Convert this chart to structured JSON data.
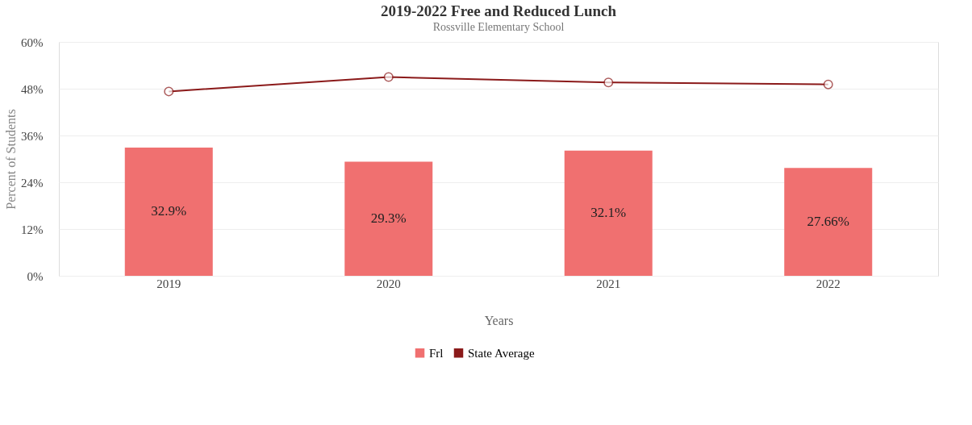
{
  "chart_data": {
    "type": "bar",
    "title": "2019-2022 Free and Reduced Lunch",
    "subtitle": "Rossville Elementary School",
    "xlabel": "Years",
    "ylabel": "Percent of Students",
    "categories": [
      "2019",
      "2020",
      "2021",
      "2022"
    ],
    "series": [
      {
        "name": "Frl",
        "color": "#f07070",
        "values": [
          32.9,
          29.3,
          32.1,
          27.66
        ],
        "value_labels": [
          "32.9%",
          "29.3%",
          "32.1%",
          "27.66%"
        ]
      },
      {
        "name": "State Average",
        "type": "line",
        "color": "#8b1a1a",
        "marker": "circle",
        "values": [
          47.3,
          51.0,
          49.6,
          49.1
        ]
      }
    ],
    "ylim": [
      0,
      60
    ],
    "yticks": [
      {
        "value": 0,
        "label": "0%"
      },
      {
        "value": 12,
        "label": "12%"
      },
      {
        "value": 24,
        "label": "24%"
      },
      {
        "value": 36,
        "label": "36%"
      },
      {
        "value": 48,
        "label": "48%"
      },
      {
        "value": 60,
        "label": "60%"
      }
    ],
    "grid": "y",
    "legend": "bottom"
  }
}
